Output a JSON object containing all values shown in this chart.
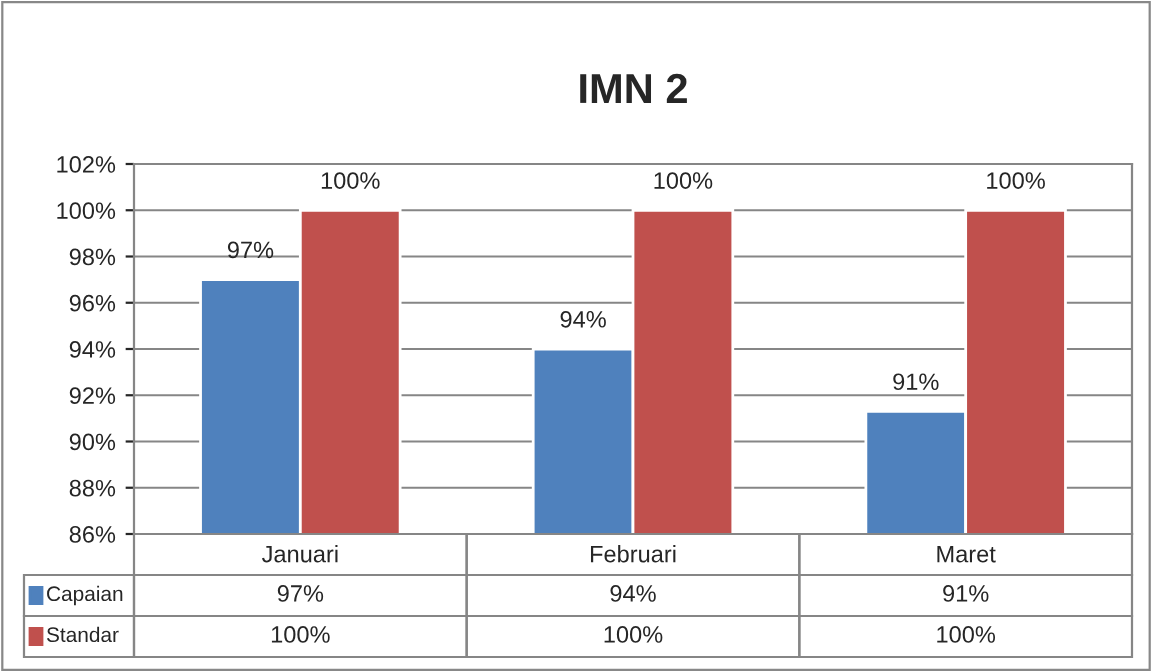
{
  "chart_data": {
    "type": "bar",
    "title": "IMN 2",
    "categories": [
      "Januari",
      "Februari",
      "Maret"
    ],
    "series": [
      {
        "name": "Capaian",
        "color": "#4f81bd",
        "values": [
          97,
          94,
          91.3
        ],
        "value_labels": [
          "97%",
          "94%",
          "91%"
        ]
      },
      {
        "name": "Standar",
        "color": "#c0504d",
        "values": [
          100,
          100,
          100
        ],
        "value_labels": [
          "100%",
          "100%",
          "100%"
        ]
      }
    ],
    "ylim": [
      86,
      102
    ],
    "yticks": [
      {
        "value": 86,
        "label": "86%"
      },
      {
        "value": 88,
        "label": "88%"
      },
      {
        "value": 90,
        "label": "90%"
      },
      {
        "value": 92,
        "label": "92%"
      },
      {
        "value": 94,
        "label": "94%"
      },
      {
        "value": 96,
        "label": "96%"
      },
      {
        "value": 98,
        "label": "98%"
      },
      {
        "value": 100,
        "label": "100%"
      },
      {
        "value": 102,
        "label": "102%"
      }
    ],
    "grid": "y",
    "legend": "bottom"
  }
}
